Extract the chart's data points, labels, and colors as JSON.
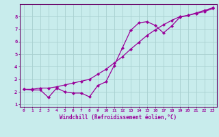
{
  "title": "",
  "xlabel": "Windchill (Refroidissement éolien,°C)",
  "ylabel": "",
  "bg_color": "#c8ecec",
  "grid_color": "#a8d0d0",
  "line_color": "#990099",
  "spine_color": "#660066",
  "xlim": [
    -0.5,
    23.5
  ],
  "ylim": [
    0.8,
    9.0
  ],
  "xticks": [
    0,
    1,
    2,
    3,
    4,
    5,
    6,
    7,
    8,
    9,
    10,
    11,
    12,
    13,
    14,
    15,
    16,
    17,
    18,
    19,
    20,
    21,
    22,
    23
  ],
  "yticks": [
    1,
    2,
    3,
    4,
    5,
    6,
    7,
    8
  ],
  "line1_x": [
    0,
    1,
    2,
    3,
    4,
    5,
    6,
    7,
    8,
    9,
    10,
    11,
    12,
    13,
    14,
    15,
    16,
    17,
    18,
    19,
    20,
    21,
    22,
    23
  ],
  "line1_y": [
    2.2,
    2.15,
    2.15,
    1.55,
    2.3,
    2.0,
    1.9,
    1.9,
    1.6,
    2.5,
    2.8,
    4.1,
    5.5,
    6.9,
    7.5,
    7.6,
    7.3,
    6.7,
    7.25,
    7.95,
    8.1,
    8.3,
    8.5,
    8.7
  ],
  "line2_x": [
    0,
    1,
    2,
    3,
    4,
    5,
    6,
    7,
    8,
    9,
    10,
    11,
    12,
    13,
    14,
    15,
    16,
    17,
    18,
    19,
    20,
    21,
    22,
    23
  ],
  "line2_y": [
    2.2,
    2.2,
    2.3,
    2.3,
    2.4,
    2.55,
    2.7,
    2.85,
    3.0,
    3.4,
    3.8,
    4.3,
    4.8,
    5.4,
    5.95,
    6.5,
    6.95,
    7.35,
    7.7,
    8.0,
    8.1,
    8.25,
    8.4,
    8.65
  ],
  "marker": "D",
  "markersize": 2.2,
  "linewidth": 0.9,
  "tick_fontsize": 4.5,
  "xlabel_fontsize": 5.5
}
